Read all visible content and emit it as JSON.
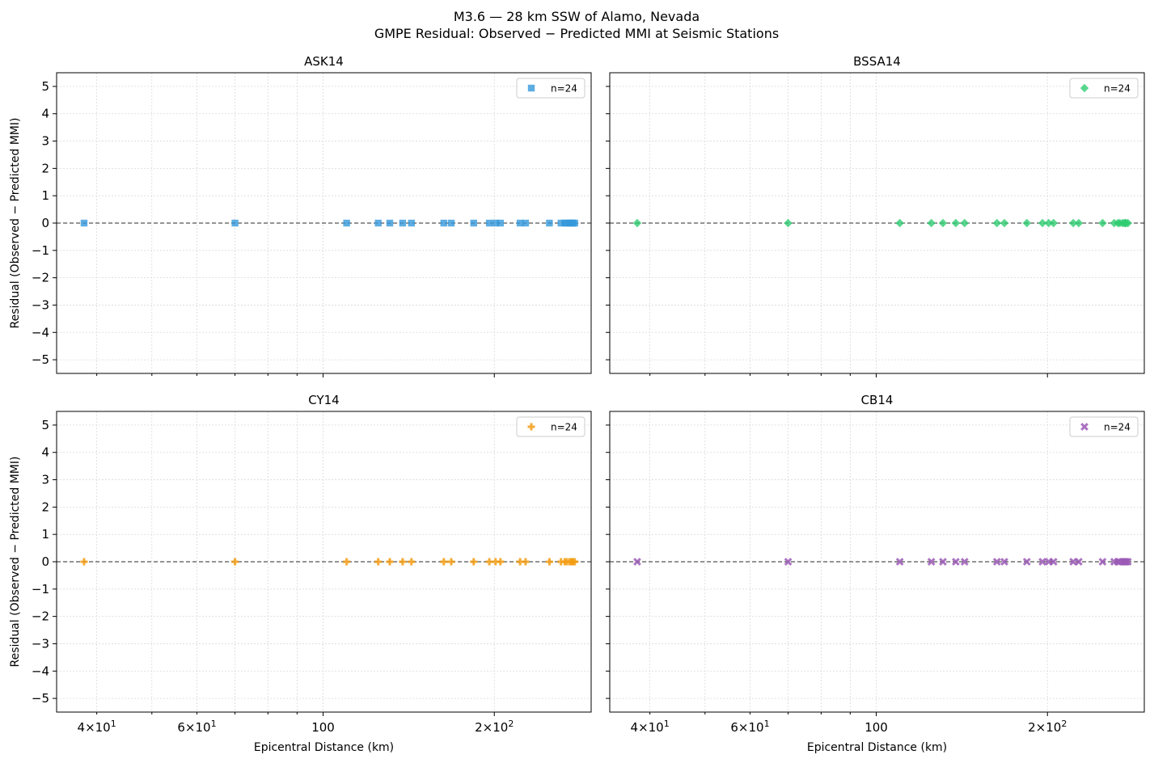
{
  "figure": {
    "title_line1": "M3.6 — 28 km SSW of Alamo, Nevada",
    "title_line2": "GMPE Residual: Observed − Predicted MMI at Seismic Stations"
  },
  "chart_data": [
    {
      "type": "scatter",
      "title": "ASK14",
      "xlabel": "",
      "ylabel": "Residual (Observed − Predicted MMI)",
      "xscale": "log",
      "xlim": [
        34,
        296
      ],
      "ylim": [
        -5.5,
        5.5
      ],
      "yticks": [
        "5",
        "4",
        "3",
        "2",
        "1",
        "0",
        "−1",
        "−2",
        "−3",
        "−4",
        "−5"
      ],
      "xticks": [],
      "grid": true,
      "zero_line": true,
      "legend_placement": "top-right",
      "marker": "square",
      "color": "#3498db",
      "series": [
        {
          "name": "n=24",
          "x": [
            38,
            70,
            110,
            125,
            131,
            138,
            143,
            163,
            168,
            184,
            196,
            201,
            205,
            222,
            227,
            250,
            262,
            266,
            268,
            271,
            273,
            274,
            275,
            277
          ],
          "y": [
            0,
            0,
            0,
            0,
            0,
            0,
            0,
            0,
            0,
            0,
            0,
            0,
            0,
            0,
            0,
            0,
            0,
            0,
            0,
            0,
            0,
            0,
            0,
            0
          ]
        }
      ]
    },
    {
      "type": "scatter",
      "title": "BSSA14",
      "xlabel": "",
      "ylabel": "",
      "xscale": "log",
      "xlim": [
        34,
        296
      ],
      "ylim": [
        -5.5,
        5.5
      ],
      "yticks": [],
      "xticks": [],
      "grid": true,
      "zero_line": true,
      "legend_placement": "top-right",
      "marker": "diamond",
      "color": "#2ecc71",
      "series": [
        {
          "name": "n=24",
          "x": [
            38,
            70,
            110,
            125,
            131,
            138,
            143,
            163,
            168,
            184,
            196,
            201,
            205,
            222,
            227,
            250,
            262,
            266,
            268,
            271,
            273,
            274,
            275,
            277
          ],
          "y": [
            0,
            0,
            0,
            0,
            0,
            0,
            0,
            0,
            0,
            0,
            0,
            0,
            0,
            0,
            0,
            0,
            0,
            0,
            0,
            0,
            0,
            0,
            0,
            0
          ]
        }
      ]
    },
    {
      "type": "scatter",
      "title": "CY14",
      "xlabel": "Epicentral Distance (km)",
      "ylabel": "Residual (Observed − Predicted MMI)",
      "xscale": "log",
      "xlim": [
        34,
        296
      ],
      "ylim": [
        -5.5,
        5.5
      ],
      "yticks": [
        "5",
        "4",
        "3",
        "2",
        "1",
        "0",
        "−1",
        "−2",
        "−3",
        "−4",
        "−5"
      ],
      "xticks": [
        {
          "value": 40,
          "base": "4×10",
          "exp": "1"
        },
        {
          "value": 60,
          "base": "6×10",
          "exp": "1"
        },
        {
          "value": 100,
          "base": "100",
          "exp": ""
        },
        {
          "value": 200,
          "base": "2×10",
          "exp": "2"
        }
      ],
      "grid": true,
      "zero_line": true,
      "legend_placement": "top-right",
      "marker": "plus",
      "color": "#f39c12",
      "series": [
        {
          "name": "n=24",
          "x": [
            38,
            70,
            110,
            125,
            131,
            138,
            143,
            163,
            168,
            184,
            196,
            201,
            205,
            222,
            227,
            250,
            262,
            266,
            268,
            271,
            273,
            274,
            275,
            277
          ],
          "y": [
            0,
            0,
            0,
            0,
            0,
            0,
            0,
            0,
            0,
            0,
            0,
            0,
            0,
            0,
            0,
            0,
            0,
            0,
            0,
            0,
            0,
            0,
            0,
            0
          ]
        }
      ]
    },
    {
      "type": "scatter",
      "title": "CB14",
      "xlabel": "Epicentral Distance (km)",
      "ylabel": "",
      "xscale": "log",
      "xlim": [
        34,
        296
      ],
      "ylim": [
        -5.5,
        5.5
      ],
      "yticks": [],
      "xticks": [
        {
          "value": 40,
          "base": "4×10",
          "exp": "1"
        },
        {
          "value": 60,
          "base": "6×10",
          "exp": "1"
        },
        {
          "value": 100,
          "base": "100",
          "exp": ""
        },
        {
          "value": 200,
          "base": "2×10",
          "exp": "2"
        }
      ],
      "grid": true,
      "zero_line": true,
      "legend_placement": "top-right",
      "marker": "x",
      "color": "#9b59b6",
      "series": [
        {
          "name": "n=24",
          "x": [
            38,
            70,
            110,
            125,
            131,
            138,
            143,
            163,
            168,
            184,
            196,
            201,
            205,
            222,
            227,
            250,
            262,
            266,
            268,
            271,
            273,
            274,
            275,
            277
          ],
          "y": [
            0,
            0,
            0,
            0,
            0,
            0,
            0,
            0,
            0,
            0,
            0,
            0,
            0,
            0,
            0,
            0,
            0,
            0,
            0,
            0,
            0,
            0,
            0,
            0
          ]
        }
      ]
    }
  ]
}
